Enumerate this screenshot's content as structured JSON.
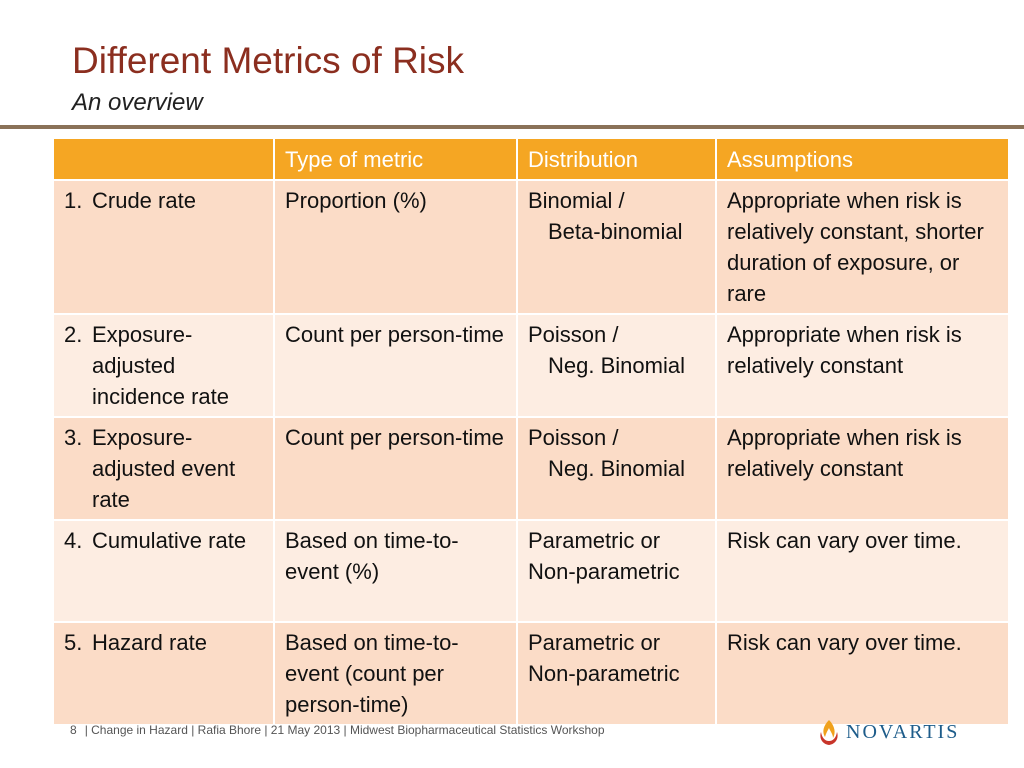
{
  "header": {
    "title": "Different Metrics of Risk",
    "subtitle": "An overview"
  },
  "table": {
    "columns": [
      "",
      "Type of metric",
      "Distribution",
      "Assumptions"
    ],
    "rows": [
      {
        "num": "1.",
        "metric": "Crude rate",
        "type": "Proportion (%)",
        "dist_line1": "Binomial /",
        "dist_line2": "Beta-binomial",
        "assumptions": "Appropriate when risk is relatively constant, shorter duration of exposure, or rare"
      },
      {
        "num": "2.",
        "metric": "Exposure-adjusted incidence rate",
        "type": "Count per person-time",
        "dist_line1": "Poisson /",
        "dist_line2": "Neg. Binomial",
        "assumptions": "Appropriate when risk is relatively constant"
      },
      {
        "num": "3.",
        "metric": "Exposure-adjusted event rate",
        "type": "Count per person-time",
        "dist_line1": "Poisson /",
        "dist_line2": "Neg. Binomial",
        "assumptions": "Appropriate when risk is relatively constant"
      },
      {
        "num": "4.",
        "metric": "Cumulative rate",
        "type": "Based on time-to-event (%)",
        "dist_line1": "Parametric or",
        "dist_line2": "Non-parametric",
        "assumptions": "Risk can vary over time."
      },
      {
        "num": "5.",
        "metric": "Hazard rate",
        "type": "Based on time-to-event (count per person-time)",
        "dist_line1": "Parametric or",
        "dist_line2": "Non-parametric",
        "assumptions": "Risk can vary over time."
      }
    ]
  },
  "footer": {
    "page": "8",
    "text": "| Change in Hazard | Rafia Bhore | 21 May 2013 | Midwest Biopharmaceutical Statistics Workshop"
  },
  "logo": {
    "text": "NOVARTIS",
    "colors": {
      "flame_orange": "#f0a11c",
      "flame_red": "#c8352a",
      "text_blue": "#1d5c8a"
    }
  },
  "colors": {
    "title": "#8b2e1f",
    "header_fill": "#f5a623",
    "row_odd": "#fbdcc7",
    "row_even": "#fdede2",
    "rule": "#8a7258"
  }
}
